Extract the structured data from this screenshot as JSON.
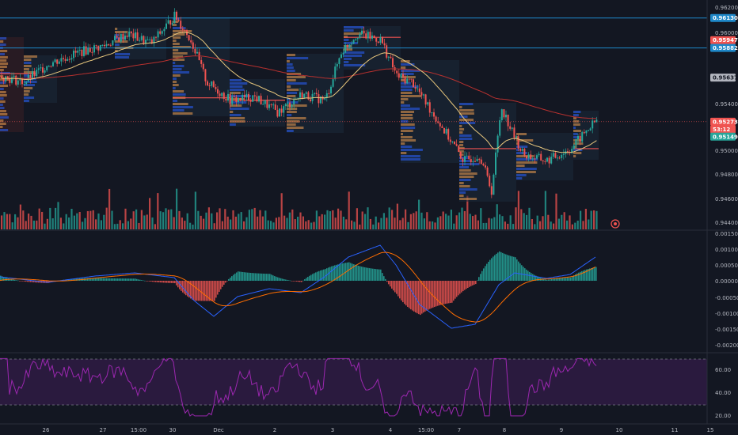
{
  "colors": {
    "background": "#131722",
    "up": "#26a69a",
    "down": "#ef5350",
    "ema_fast": "#e8c77d",
    "ema_slow": "#b8312f",
    "macd_line": "#2962ff",
    "signal_line": "#ff6d00",
    "rsi_line": "#9c27b0",
    "rsi_band": "#2a1a3e",
    "hline": "#1e88c9",
    "profile_box": "#1c2a3a"
  },
  "price_axis": {
    "ticks": [
      "0.96200",
      "0.96000",
      "0.95400",
      "0.95000",
      "0.94800",
      "0.94600",
      "0.94400"
    ],
    "tags": [
      {
        "label": "0.96130",
        "color": "#1e88c9",
        "text_color": "#ffffff",
        "value": 0.9613
      },
      {
        "label": "0.95947",
        "color": "#ef5350",
        "text_color": "#ffffff",
        "value": 0.95947
      },
      {
        "label": "0.95882",
        "color": "#1e88c9",
        "text_color": "#ffffff",
        "value": 0.95882
      },
      {
        "label": "0.95637",
        "color": "#b2b5be",
        "text_color": "#131722",
        "value": 0.95637
      },
      {
        "label": "0.95273",
        "color": "#ef5350",
        "text_color": "#ffffff",
        "value": 0.95273
      },
      {
        "label": "53:12",
        "color": "#ef5350",
        "text_color": "#ffffff",
        "value": 0.9521
      },
      {
        "label": "0.95149",
        "color": "#26a69a",
        "text_color": "#ffffff",
        "value": 0.95149
      }
    ]
  },
  "macd_axis": {
    "ticks": [
      "0.00150",
      "0.00100",
      "0.00050",
      "0.00000",
      "-0.00050",
      "-0.00100",
      "-0.00150",
      "-0.00200"
    ]
  },
  "rsi_axis": {
    "ticks": [
      "60.00",
      "40.00",
      "20.00"
    ]
  },
  "time_axis": {
    "labels": [
      "26",
      "27",
      "15:00",
      "30",
      "Dec",
      "2",
      "3",
      "4",
      "15:00",
      "7",
      "8",
      "9",
      "10",
      "11",
      "15"
    ]
  },
  "alert_icon": "alert-clock-icon"
}
